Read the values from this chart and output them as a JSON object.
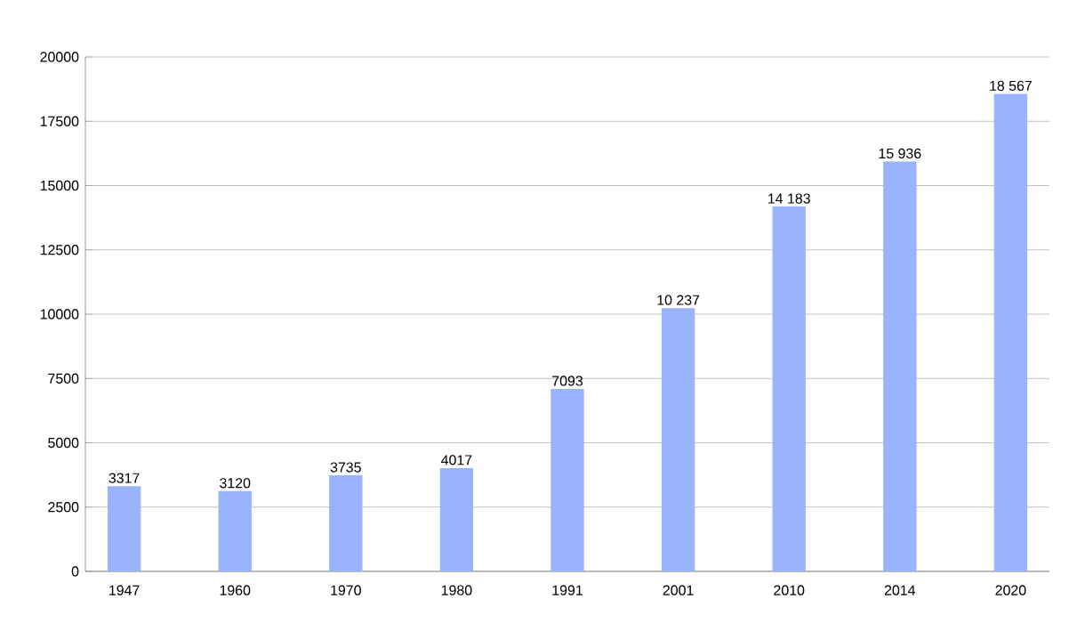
{
  "chart_data": {
    "type": "bar",
    "categories": [
      "1947",
      "1960",
      "1970",
      "1980",
      "1991",
      "2001",
      "2010",
      "2014",
      "2020"
    ],
    "values": [
      3317,
      3120,
      3735,
      4017,
      7093,
      10237,
      14183,
      15936,
      18567
    ],
    "value_labels": [
      "3317",
      "3120",
      "3735",
      "4017",
      "7093",
      "10 237",
      "14 183",
      "15 936",
      "18 567"
    ],
    "color": "#99b3ff",
    "ylim": [
      0,
      20000
    ],
    "yticks": [
      0,
      2500,
      5000,
      7500,
      10000,
      12500,
      15000,
      17500,
      20000
    ],
    "grid": "y"
  }
}
